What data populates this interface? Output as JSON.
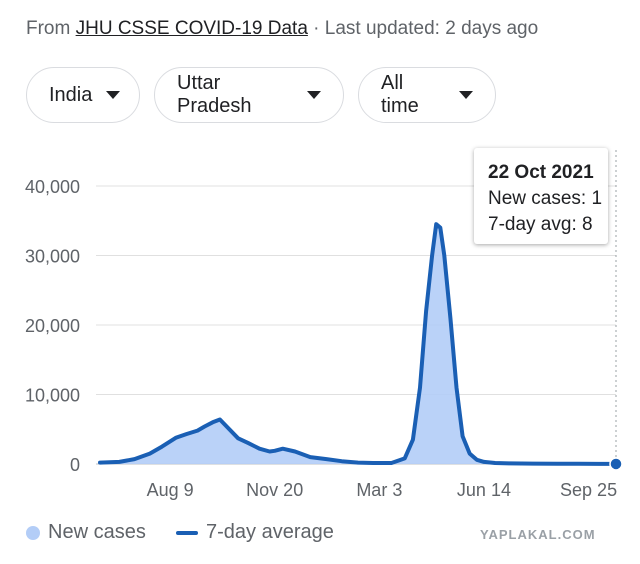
{
  "header": {
    "source_prefix": "From ",
    "source_link": "JHU CSSE COVID-19 Data",
    "updated": " · Last updated: 2 days ago"
  },
  "filters": [
    {
      "label": "India"
    },
    {
      "label": "Uttar Pradesh"
    },
    {
      "label": "All time"
    }
  ],
  "tooltip": {
    "date": "22 Oct 2021",
    "new_cases": "New cases: 1",
    "avg": "7-day avg: 8"
  },
  "legend": {
    "bars": "New cases",
    "line": "7-day average"
  },
  "watermark": "YAPLAKAL.COM",
  "colors": {
    "bars": "#b3cdf7",
    "line": "#1a5fb4",
    "grid": "#e0e0e0",
    "axis": "#5f6368"
  },
  "chart_data": {
    "type": "line",
    "title": "",
    "xlabel": "",
    "ylabel": "",
    "y_ticks": [
      0,
      10000,
      20000,
      30000,
      40000
    ],
    "y_tick_labels": [
      "0",
      "10,000",
      "20,000",
      "30,000",
      "40,000"
    ],
    "ylim": [
      0,
      42000
    ],
    "xlim": [
      "2020-06-01",
      "2021-10-22"
    ],
    "x_ticks": [
      "2020-08-09",
      "2020-11-20",
      "2021-03-03",
      "2021-06-14",
      "2021-09-25"
    ],
    "x_tick_labels": [
      "Aug 9",
      "Nov 20",
      "Mar 3",
      "Jun 14",
      "Sep 25"
    ],
    "grid": true,
    "legend_position": "bottom-left",
    "highlight": {
      "date": "2021-10-22",
      "value": 8
    },
    "series": [
      {
        "name": "7-day average",
        "dates": [
          "2020-06-01",
          "2020-06-20",
          "2020-07-05",
          "2020-07-20",
          "2020-08-01",
          "2020-08-15",
          "2020-08-25",
          "2020-09-05",
          "2020-09-12",
          "2020-09-20",
          "2020-09-27",
          "2020-10-05",
          "2020-10-15",
          "2020-10-25",
          "2020-11-05",
          "2020-11-15",
          "2020-11-20",
          "2020-11-28",
          "2020-12-10",
          "2020-12-25",
          "2021-01-10",
          "2021-01-25",
          "2021-02-10",
          "2021-02-25",
          "2021-03-15",
          "2021-03-28",
          "2021-04-05",
          "2021-04-12",
          "2021-04-18",
          "2021-04-24",
          "2021-04-28",
          "2021-05-02",
          "2021-05-06",
          "2021-05-12",
          "2021-05-18",
          "2021-05-24",
          "2021-05-31",
          "2021-06-07",
          "2021-06-14",
          "2021-06-25",
          "2021-07-10",
          "2021-08-01",
          "2021-08-25",
          "2021-09-15",
          "2021-10-05",
          "2021-10-22"
        ],
        "values": [
          200,
          300,
          700,
          1500,
          2500,
          3800,
          4300,
          4800,
          5400,
          6000,
          6400,
          5200,
          3700,
          3000,
          2200,
          1800,
          1900,
          2200,
          1800,
          1000,
          700,
          400,
          200,
          150,
          150,
          800,
          3500,
          11000,
          22000,
          30000,
          34500,
          34000,
          30000,
          21000,
          11000,
          4000,
          1500,
          600,
          300,
          150,
          90,
          60,
          40,
          25,
          12,
          8
        ]
      }
    ]
  }
}
